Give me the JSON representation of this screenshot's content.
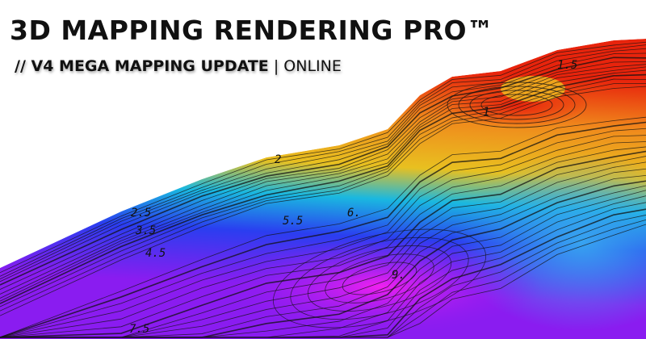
{
  "header": {
    "title": "3D MAPPING RENDERING PRO™",
    "subtitle_bold": "// V4 MEGA MAPPING UPDATE",
    "subtitle_separator": "|",
    "subtitle_status": "ONLINE"
  },
  "terrain": {
    "colors": {
      "peak": "#e8240c",
      "orange": "#f08a1c",
      "yellow": "#e8c020",
      "cyan": "#1ab8e0",
      "blue": "#2a3ef0",
      "purple": "#8a1cf0",
      "magenta": "#f020f0"
    },
    "contour_labels": [
      "1.5",
      "1",
      "2",
      "2.5",
      "3.5",
      "4.5",
      "5.5",
      "6.",
      "9.",
      "7.5"
    ]
  }
}
